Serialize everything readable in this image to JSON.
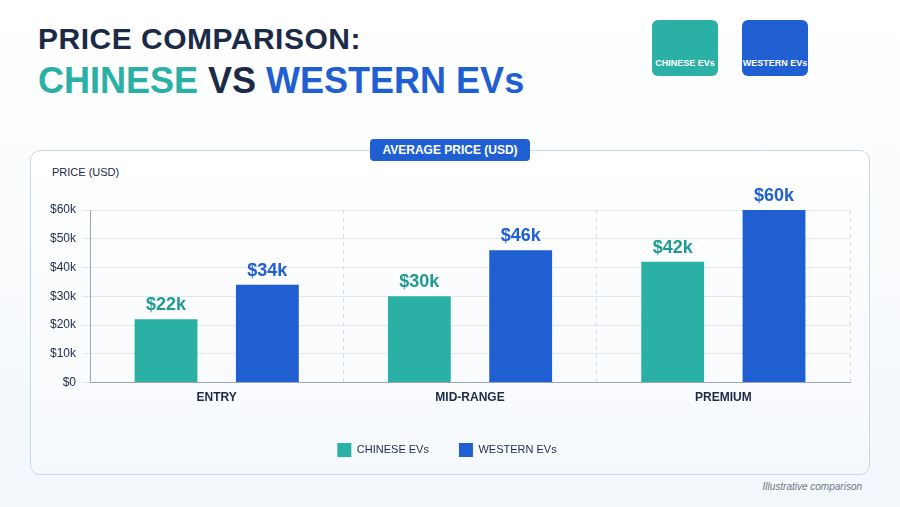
{
  "chart_data": {
    "type": "bar",
    "title": "PRICE COMPARISON:",
    "subtitle": "CHINESE VS WESTERN EVs",
    "y_label": "PRICE (USD)",
    "annotations": [
      "AVERAGE PRICE (USD)",
      "Illustrative comparison"
    ],
    "categories": [
      "ENTRY",
      "MID-RANGE",
      "PREMIUM"
    ],
    "series": [
      {
        "name": "CHINESE EVs",
        "color": "#2bb0a5",
        "values": [
          22000,
          30000,
          42000
        ],
        "value_labels": [
          "$22k",
          "$30k",
          "$42k"
        ]
      },
      {
        "name": "WESTERN EVs",
        "color": "#1f5fd1",
        "values": [
          34000,
          46000,
          60000
        ],
        "value_labels": [
          "$34k",
          "$46k",
          "$60k"
        ]
      }
    ],
    "ylim": [
      0,
      60000
    ],
    "yticks": [
      {
        "value": 0,
        "label": "$0"
      },
      {
        "value": 10000,
        "label": "$10k"
      },
      {
        "value": 20000,
        "label": "$20k"
      },
      {
        "value": 30000,
        "label": "$30k"
      },
      {
        "value": 40000,
        "label": "$40k"
      },
      {
        "value": 50000,
        "label": "$50k"
      },
      {
        "value": 60000,
        "label": "$60k"
      }
    ],
    "grid": true,
    "legend": "bottom",
    "data_labels": true
  }
}
